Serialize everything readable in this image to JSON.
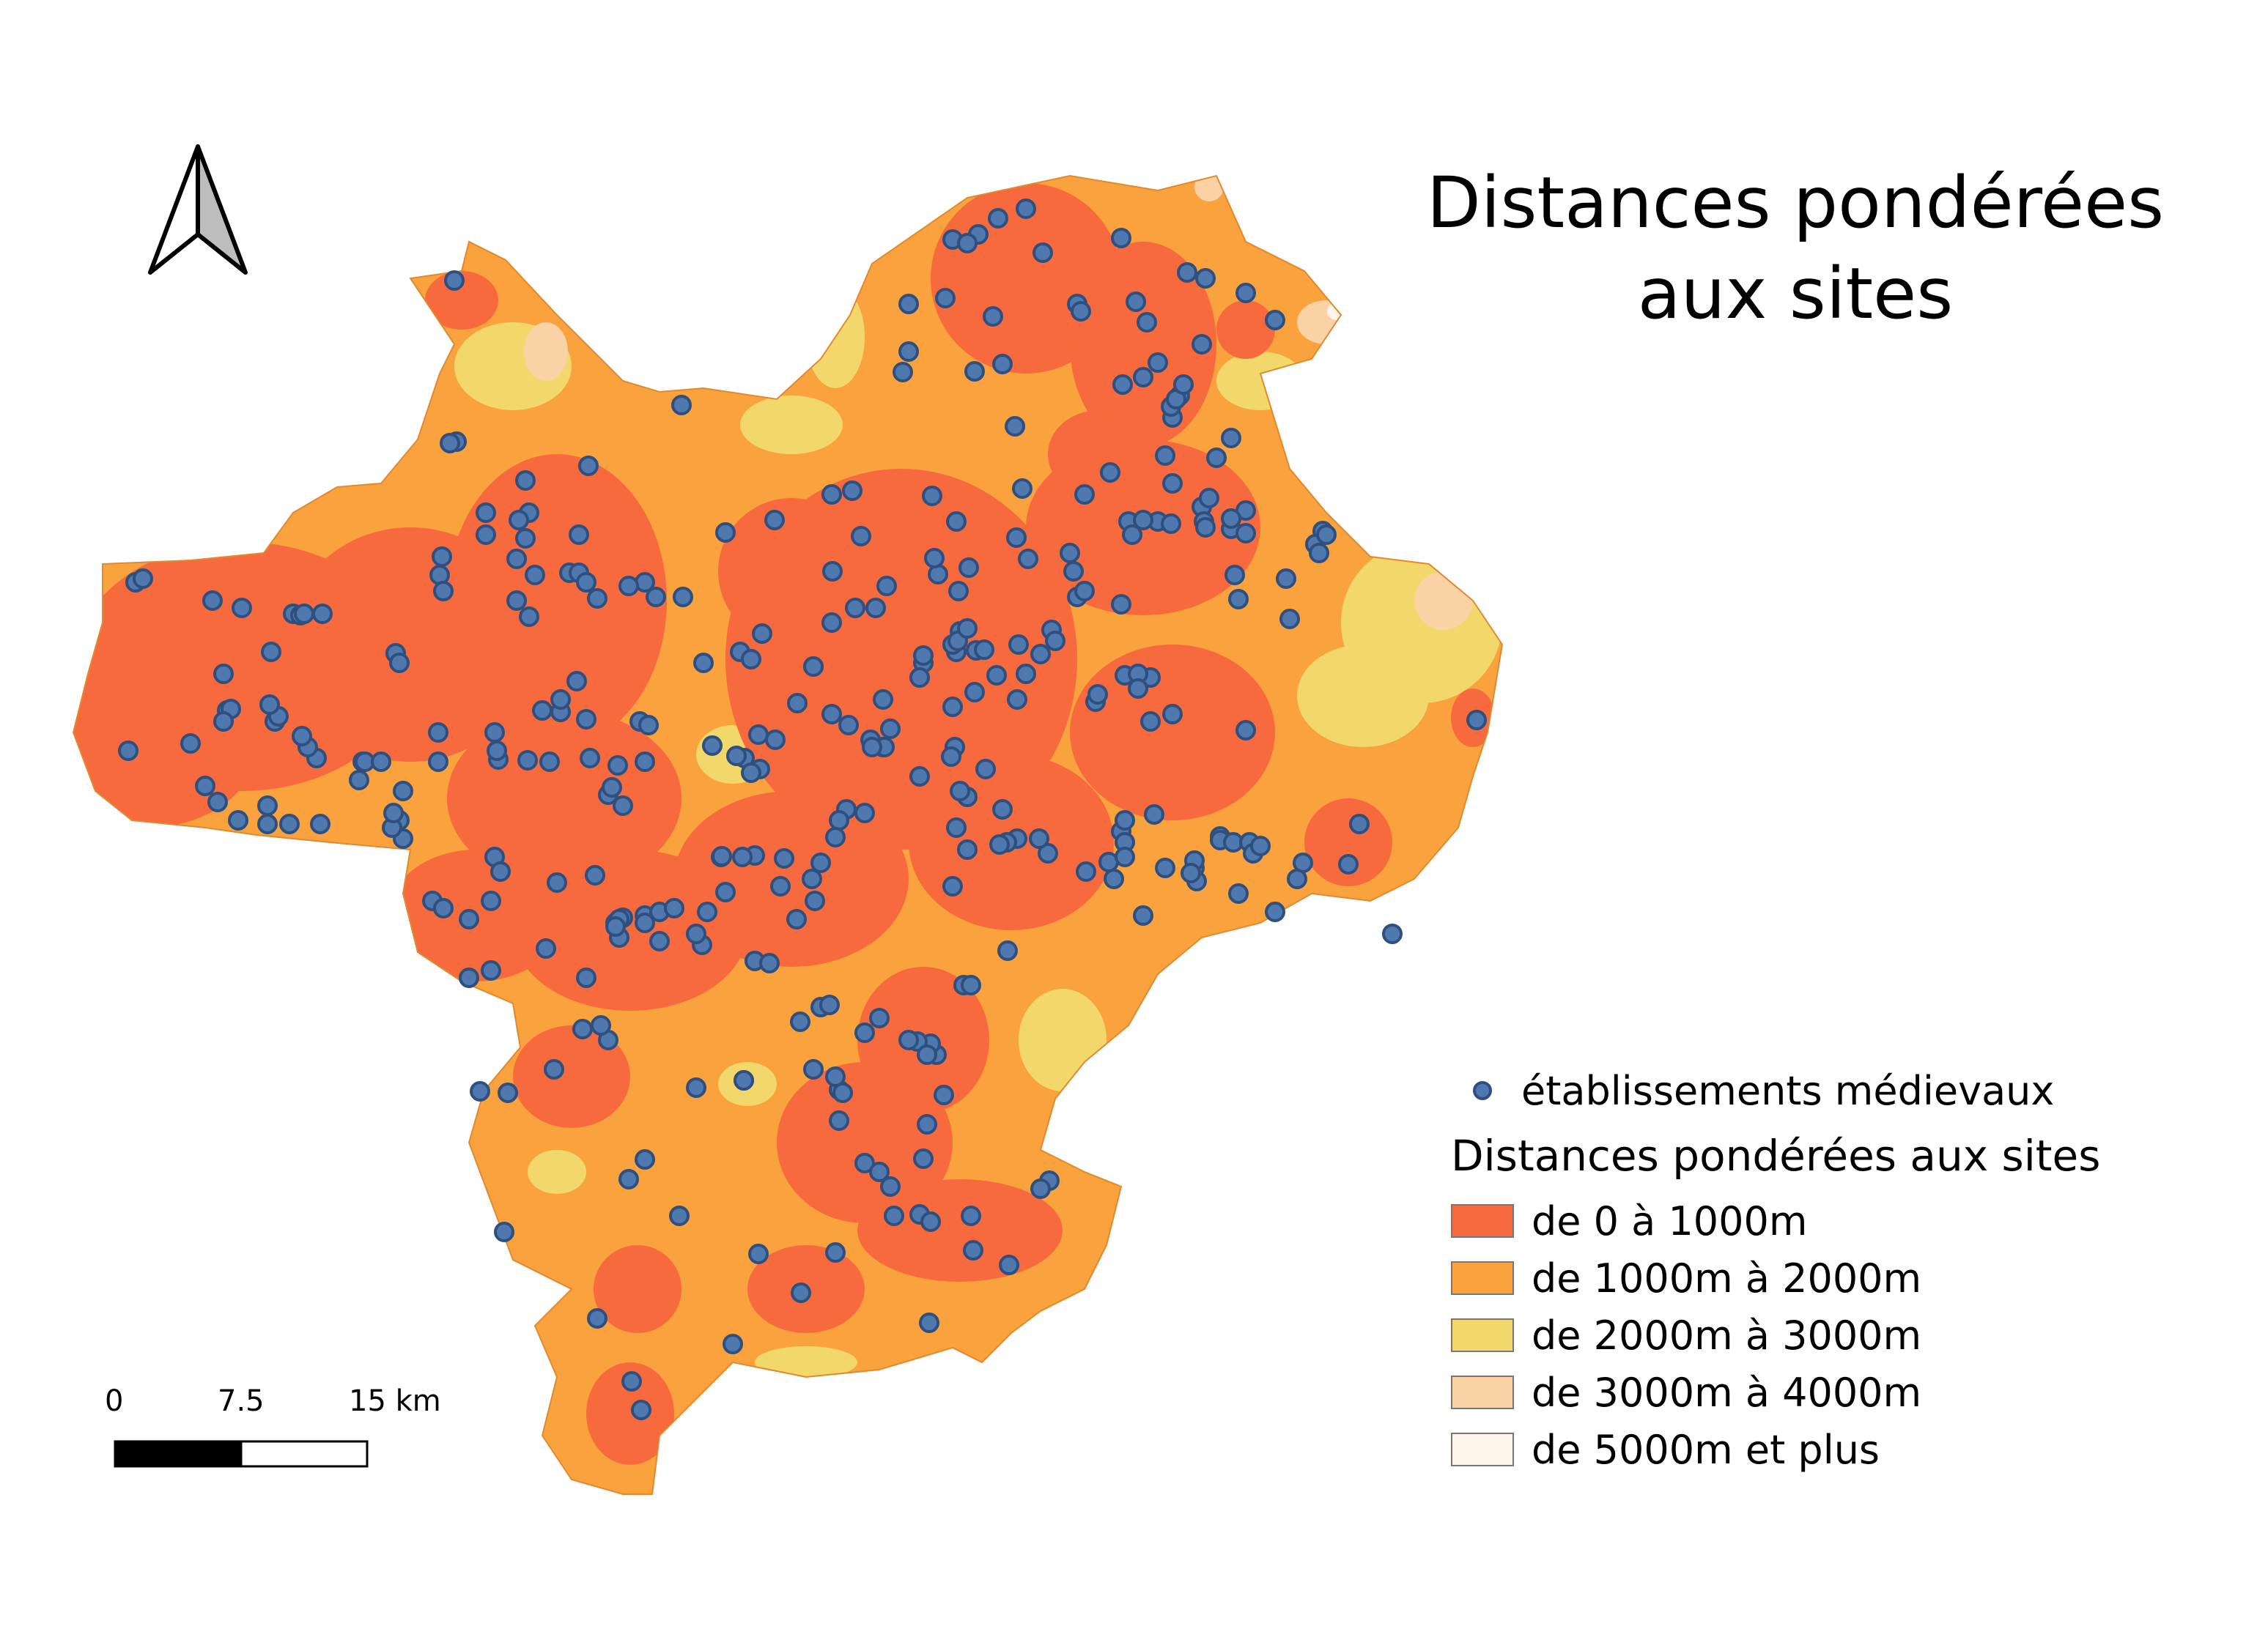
{
  "title_line1": "Distances pondérées",
  "title_line2": "aux sites",
  "north_arrow_icon": "north-arrow-icon",
  "legend": {
    "points_label": "établissements médievaux",
    "points_color": "#4f78ae",
    "raster_title": "Distances pondérées aux sites",
    "classes": [
      {
        "label": "de 0 à 1000m",
        "color": "#f76a3d"
      },
      {
        "label": "de 1000m à 2000m",
        "color": "#f9a23e"
      },
      {
        "label": "de 2000m à 3000m",
        "color": "#f2d86a"
      },
      {
        "label": "de 3000m à 4000m",
        "color": "#fbd1a6"
      },
      {
        "label": "de 5000m et plus",
        "color": "#fff4ea"
      }
    ]
  },
  "scale_bar": {
    "labels": [
      "0",
      "7.5",
      "15 km"
    ]
  }
}
